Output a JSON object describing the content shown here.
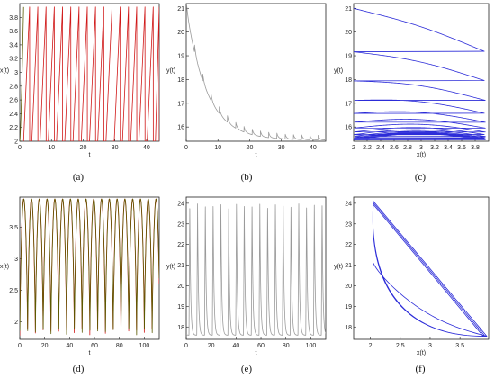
{
  "chart_data": [
    {
      "id": "a",
      "type": "line",
      "caption": "(a)",
      "xlabel": "t",
      "ylabel": "x(t)",
      "xlim": [
        0,
        44
      ],
      "ylim": [
        2,
        4
      ],
      "xticks": [
        0,
        10,
        20,
        30,
        40
      ],
      "yticks": [
        2,
        2.2,
        2.4,
        2.6,
        2.8,
        3,
        3.2,
        3.4,
        3.6,
        3.8
      ],
      "series": [
        {
          "color": "#d01818",
          "pattern": "sawtooth-rise",
          "params": {
            "x0": 2.0,
            "amp": 1.95,
            "period": 2.6,
            "rise": 1.9,
            "start": 1.2
          }
        },
        {
          "color": "#5a5a00",
          "pattern": "initial-rise",
          "params": {
            "x0": 2.0,
            "x1": 3.95,
            "t0": 0,
            "t1": 1.2
          }
        }
      ]
    },
    {
      "id": "b",
      "type": "line",
      "caption": "(b)",
      "xlabel": "t",
      "ylabel": "y(t)",
      "xlim": [
        0,
        44
      ],
      "ylim": [
        15.4,
        21.2
      ],
      "xticks": [
        0,
        10,
        20,
        30,
        40
      ],
      "yticks": [
        16,
        17,
        18,
        19,
        20,
        21
      ],
      "series": [
        {
          "color": "#9a9a9a",
          "pattern": "decay-scallop",
          "params": {
            "y0": 21.0,
            "yinf": 15.45,
            "tau": 6.5,
            "period": 2.6,
            "bump": 0.35
          }
        }
      ]
    },
    {
      "id": "c",
      "type": "line",
      "caption": "(c)",
      "xlabel": "x(t)",
      "ylabel": "y(t)",
      "xlim": [
        2,
        4
      ],
      "ylim": [
        15.4,
        21.2
      ],
      "xticks": [
        2,
        2.2,
        2.4,
        2.6,
        2.8,
        3,
        3.2,
        3.4,
        3.6,
        3.8
      ],
      "yticks": [
        16,
        17,
        18,
        19,
        20,
        21
      ],
      "series": [
        {
          "color": "#2c2cd8",
          "pattern": "phase-decay",
          "params": {
            "xmin": 2.0,
            "xmax": 3.95,
            "y0": 21.0,
            "yinf": 15.45,
            "tau": 6.5,
            "period": 2.6,
            "cycles": 17
          }
        }
      ]
    },
    {
      "id": "d",
      "type": "line",
      "caption": "(d)",
      "xlabel": "t",
      "ylabel": "x(t)",
      "xlim": [
        0,
        112
      ],
      "ylim": [
        1.72,
        3.98
      ],
      "xticks": [
        0,
        20,
        40,
        60,
        80,
        100
      ],
      "yticks": [
        2,
        2.5,
        3,
        3.5
      ],
      "series": [
        {
          "color": "#d01818",
          "pattern": "spike-train",
          "params": {
            "xmin": 1.78,
            "xmax": 3.95,
            "period": 6.25,
            "start": 0
          }
        },
        {
          "color": "#5a5a00",
          "pattern": "spike-train",
          "params": {
            "xmin": 1.78,
            "xmax": 3.95,
            "period": 6.25,
            "start": 0.08
          }
        }
      ]
    },
    {
      "id": "e",
      "type": "line",
      "caption": "(e)",
      "xlabel": "t",
      "ylabel": "y(t)",
      "xlim": [
        0,
        112
      ],
      "ylim": [
        17.4,
        24.3
      ],
      "xticks": [
        0,
        20,
        40,
        60,
        80,
        100
      ],
      "yticks": [
        18,
        19,
        20,
        21,
        22,
        23,
        24
      ],
      "series": [
        {
          "color": "#9a9a9a",
          "pattern": "pulse-train",
          "params": {
            "ymin": 17.6,
            "ymax": 24.0,
            "period": 6.25,
            "start": 2.2
          }
        }
      ]
    },
    {
      "id": "f",
      "type": "line",
      "caption": "(f)",
      "xlabel": "x(t)",
      "ylabel": "y(t)",
      "xlim": [
        1.72,
        3.98
      ],
      "ylim": [
        17.4,
        24.3
      ],
      "xticks": [
        2,
        2.5,
        3,
        3.5
      ],
      "yticks": [
        18,
        19,
        20,
        21,
        22,
        23,
        24
      ],
      "series": [
        {
          "color": "#2c2cd8",
          "pattern": "limit-cycle",
          "params": {
            "start": [
              2.05,
              21.1
            ],
            "corner": [
              3.95,
              17.55
            ],
            "apex": [
              2.05,
              24.1
            ],
            "loops": 3
          }
        }
      ]
    }
  ]
}
